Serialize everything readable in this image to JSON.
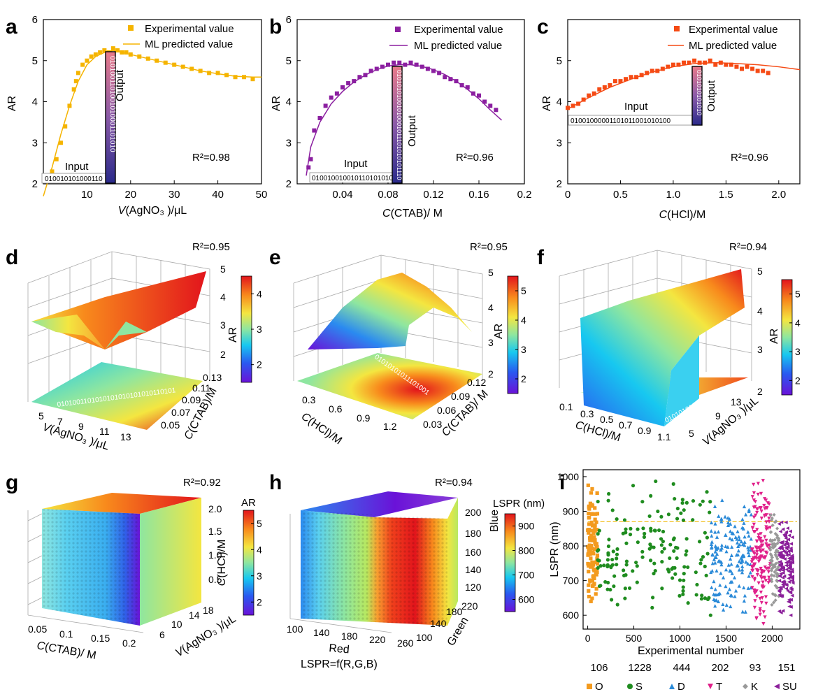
{
  "colors": {
    "a": "#f5b400",
    "b": "#8b1fa0",
    "c": "#f54a14",
    "O": "#f39a1e",
    "S": "#1f8c1f",
    "D": "#2a8ad8",
    "T": "#e0208a",
    "K": "#999999",
    "SU": "#8b1f9a"
  },
  "panel_labels": {
    "a": "a",
    "b": "b",
    "c": "c",
    "d": "d",
    "e": "e",
    "f": "f",
    "g": "g",
    "h": "h",
    "i": "i"
  },
  "common": {
    "ar": "AR",
    "exp": "Experimental value",
    "ml": "ML predicted value",
    "input": "Input",
    "output": "Output"
  },
  "chart_data": [
    {
      "id": "a",
      "type": "scatter",
      "ylabel": "AR",
      "xlabel_pre": "V",
      "xlabel_post": "(AgNO₃ )/μL",
      "xlim": [
        0,
        50
      ],
      "ylim": [
        2,
        6
      ],
      "xticks": [
        "10",
        "20",
        "30",
        "40",
        "50"
      ],
      "yticks": [
        "2",
        "3",
        "4",
        "5",
        "6"
      ],
      "r2": "R²=0.98",
      "input_bits": "010010101000110",
      "output_bits": "0101001101001010001101010",
      "x": [
        1,
        2,
        3,
        4,
        5,
        6,
        7,
        7.5,
        8,
        9,
        10,
        11,
        12,
        13,
        14,
        15,
        16,
        17,
        18,
        19,
        20,
        22,
        24,
        26,
        28,
        30,
        32,
        34,
        36,
        38,
        40,
        42,
        44,
        46,
        48
      ],
      "y": [
        2.1,
        2.3,
        2.6,
        3.0,
        3.4,
        3.9,
        4.3,
        4.5,
        4.7,
        4.9,
        5.0,
        5.1,
        5.15,
        5.2,
        5.25,
        5.2,
        5.3,
        5.25,
        5.2,
        5.2,
        5.15,
        5.1,
        5.05,
        5.0,
        4.95,
        4.9,
        4.85,
        4.8,
        4.75,
        4.7,
        4.7,
        4.65,
        4.6,
        4.6,
        4.55
      ],
      "fit_x": [
        0,
        2,
        4,
        6,
        8,
        10,
        12,
        14,
        16,
        18,
        20,
        24,
        28,
        32,
        36,
        40,
        44,
        48,
        52
      ],
      "fit_y": [
        1.7,
        2.4,
        3.2,
        3.9,
        4.5,
        4.9,
        5.1,
        5.2,
        5.25,
        5.2,
        5.15,
        5.05,
        4.95,
        4.85,
        4.75,
        4.68,
        4.62,
        4.6,
        4.6
      ]
    },
    {
      "id": "b",
      "type": "scatter",
      "ylabel": "AR",
      "xlabel_pre": "C",
      "xlabel_post": "(CTAB)/ M",
      "xlim": [
        0,
        0.2
      ],
      "ylim": [
        2,
        6
      ],
      "xticks": [
        "0.04",
        "0.08",
        "0.12",
        "0.16",
        "0.2"
      ],
      "yticks": [
        "2",
        "3",
        "4",
        "5",
        "6"
      ],
      "r2": "R²=0.96",
      "input_bits": "0100100100101101010101",
      "output_bits": "01010101001010001011101010101110",
      "x": [
        0.01,
        0.012,
        0.015,
        0.02,
        0.025,
        0.03,
        0.035,
        0.04,
        0.045,
        0.05,
        0.055,
        0.06,
        0.065,
        0.07,
        0.075,
        0.08,
        0.085,
        0.09,
        0.095,
        0.1,
        0.105,
        0.11,
        0.115,
        0.12,
        0.125,
        0.13,
        0.135,
        0.14,
        0.145,
        0.15,
        0.155,
        0.16,
        0.165,
        0.17,
        0.175
      ],
      "y": [
        2.4,
        2.6,
        3.3,
        3.6,
        3.9,
        4.1,
        4.2,
        4.35,
        4.45,
        4.5,
        4.6,
        4.65,
        4.75,
        4.8,
        4.85,
        4.9,
        4.95,
        4.95,
        4.9,
        4.95,
        4.9,
        4.85,
        4.8,
        4.75,
        4.7,
        4.6,
        4.55,
        4.5,
        4.4,
        4.35,
        4.2,
        4.15,
        4.0,
        3.9,
        3.8
      ],
      "fit_x": [
        0.008,
        0.012,
        0.02,
        0.03,
        0.04,
        0.05,
        0.06,
        0.07,
        0.08,
        0.09,
        0.1,
        0.11,
        0.12,
        0.13,
        0.14,
        0.15,
        0.16,
        0.17,
        0.18
      ],
      "fit_y": [
        2.2,
        2.9,
        3.5,
        3.95,
        4.25,
        4.48,
        4.65,
        4.78,
        4.87,
        4.9,
        4.9,
        4.86,
        4.78,
        4.66,
        4.5,
        4.3,
        4.07,
        3.8,
        3.55
      ]
    },
    {
      "id": "c",
      "type": "scatter",
      "ylabel": "AR",
      "xlabel_pre": "C",
      "xlabel_post": "(HCl)/M",
      "xlim": [
        0,
        2.2
      ],
      "ylim": [
        2,
        6
      ],
      "xticks": [
        "0",
        "0.5",
        "1.0",
        "1.5",
        "2.0"
      ],
      "yticks": [
        "2",
        "3",
        "4",
        "5"
      ],
      "r2": "R²=0.96",
      "input_bits": "01001000001101011001010100",
      "output_bits": "0101010101010",
      "x": [
        0.0,
        0.05,
        0.1,
        0.15,
        0.2,
        0.25,
        0.3,
        0.35,
        0.4,
        0.45,
        0.5,
        0.55,
        0.6,
        0.65,
        0.7,
        0.75,
        0.8,
        0.85,
        0.9,
        0.95,
        1.0,
        1.05,
        1.1,
        1.15,
        1.2,
        1.25,
        1.3,
        1.35,
        1.4,
        1.45,
        1.5,
        1.55,
        1.6,
        1.65,
        1.7,
        1.75,
        1.8,
        1.85,
        1.9
      ],
      "y": [
        3.85,
        3.9,
        3.95,
        4.05,
        4.15,
        4.2,
        4.3,
        4.35,
        4.4,
        4.5,
        4.5,
        4.55,
        4.6,
        4.6,
        4.65,
        4.7,
        4.75,
        4.75,
        4.8,
        4.85,
        4.9,
        4.9,
        4.95,
        4.95,
        5.0,
        4.95,
        4.95,
        5.0,
        4.9,
        4.95,
        4.9,
        4.9,
        4.85,
        4.8,
        4.85,
        4.8,
        4.75,
        4.75,
        4.7
      ],
      "fit_x": [
        0,
        0.2,
        0.4,
        0.6,
        0.8,
        1.0,
        1.2,
        1.4,
        1.6,
        1.8,
        2.0,
        2.2
      ],
      "fit_y": [
        3.82,
        4.1,
        4.35,
        4.55,
        4.72,
        4.85,
        4.93,
        4.95,
        4.93,
        4.9,
        4.85,
        4.78
      ]
    },
    {
      "id": "d",
      "type": "surface3d",
      "zlabel": "AR",
      "r2": "R²=0.95",
      "zticks": [
        "2",
        "3",
        "4",
        "5"
      ],
      "xlabel_pre": "V",
      "xlabel_post": "(AgNO₃ )/μL",
      "xticks": [
        "5",
        "7",
        "9",
        "11",
        "13"
      ],
      "ylabel_pre": "C",
      "ylabel_post": "(CTAB)/M",
      "yticks": [
        "0.05",
        "0.07",
        "0.09",
        "0.11",
        "0.13"
      ],
      "colorbar": [
        "2",
        "3",
        "4"
      ],
      "bits": "0101001101010101010101010110101"
    },
    {
      "id": "e",
      "type": "surface3d",
      "zlabel": "AR",
      "r2": "R²=0.95",
      "zticks": [
        "2",
        "3",
        "4",
        "5"
      ],
      "xlabel_pre": "C",
      "xlabel_post": "(HCl)/M",
      "xticks": [
        "0.3",
        "0.6",
        "0.9",
        "1.2"
      ],
      "ylabel_pre": "C",
      "ylabel_post": "(CTAB)/ M",
      "yticks": [
        "0.03",
        "0.06",
        "0.09",
        "0.12"
      ],
      "colorbar": [
        "2",
        "3",
        "4",
        "5"
      ],
      "bits": "01010101011101001"
    },
    {
      "id": "f",
      "type": "surface3d",
      "zlabel": "AR",
      "r2": "R²=0.94",
      "zticks": [
        "2",
        "3",
        "4",
        "5"
      ],
      "xlabel_pre": "C",
      "xlabel_post": "(HCl)/M",
      "xticks": [
        "0.1",
        "0.3",
        "0.5",
        "0.7",
        "0.9",
        "1.1"
      ],
      "ylabel_pre": "V",
      "ylabel_post": "(AgNO₃ )/μL",
      "yticks": [
        "5",
        "9",
        "13"
      ],
      "colorbar": [
        "2",
        "3",
        "4",
        "5"
      ],
      "bits": "010101010010010101"
    },
    {
      "id": "g",
      "type": "volume3d",
      "r2": "R²=0.92",
      "cbar_title": "AR",
      "colorbar": [
        "2",
        "3",
        "4",
        "5"
      ],
      "zlabel_pre": "C",
      "zlabel_post": "(HCl)/M",
      "zticks": [
        "0.5",
        "1.0",
        "1.5",
        "2.0"
      ],
      "xlabel_pre": "C",
      "xlabel_post": "(CTAB)/ M",
      "xticks": [
        "0.05",
        "0.1",
        "0.15",
        "0.2"
      ],
      "ylabel_pre": "V",
      "ylabel_post": "(AgNO₃ )/μL",
      "yticks": [
        "6",
        "10",
        "14",
        "18"
      ]
    },
    {
      "id": "h",
      "type": "volume3d",
      "r2": "R²=0.94",
      "cbar_title": "LSPR (nm)",
      "colorbar": [
        "600",
        "700",
        "800",
        "900"
      ],
      "zlabel": "Blue",
      "zticks": [
        "120",
        "140",
        "160",
        "180",
        "200"
      ],
      "xlabel": "Red",
      "xticks": [
        "100",
        "140",
        "180",
        "220",
        "260"
      ],
      "ylabel": "Green",
      "yticks": [
        "100",
        "140",
        "180",
        "220"
      ],
      "formula": "LSPR=f(R,G,B)"
    },
    {
      "id": "i",
      "type": "scatter",
      "xlabel": "Experimental number",
      "ylabel": "LSPR (nm)",
      "xlim": [
        -50,
        2300
      ],
      "ylim": [
        560,
        1020
      ],
      "xticks": [
        "0",
        "500",
        "1000",
        "1500",
        "2000"
      ],
      "yticks": [
        "600",
        "700",
        "800",
        "900",
        "1000"
      ],
      "ref_line": 870,
      "series": [
        {
          "name": "O",
          "count": "106",
          "marker": "square",
          "range": [
            0,
            106
          ],
          "ylo": 640,
          "yhi": 975
        },
        {
          "name": "S",
          "count": "1228",
          "marker": "circle",
          "range": [
            106,
            1334
          ],
          "ylo": 600,
          "yhi": 995
        },
        {
          "name": "D",
          "count": "444",
          "marker": "triangle-up",
          "range": [
            1334,
            1778
          ],
          "ylo": 610,
          "yhi": 935
        },
        {
          "name": "T",
          "count": "202",
          "marker": "triangle-down",
          "range": [
            1778,
            1980
          ],
          "ylo": 575,
          "yhi": 995
        },
        {
          "name": "K",
          "count": "93",
          "marker": "diamond",
          "range": [
            1980,
            2073
          ],
          "ylo": 630,
          "yhi": 890
        },
        {
          "name": "SU",
          "count": "151",
          "marker": "triangle-left",
          "range": [
            2073,
            2224
          ],
          "ylo": 600,
          "yhi": 880
        }
      ]
    }
  ]
}
